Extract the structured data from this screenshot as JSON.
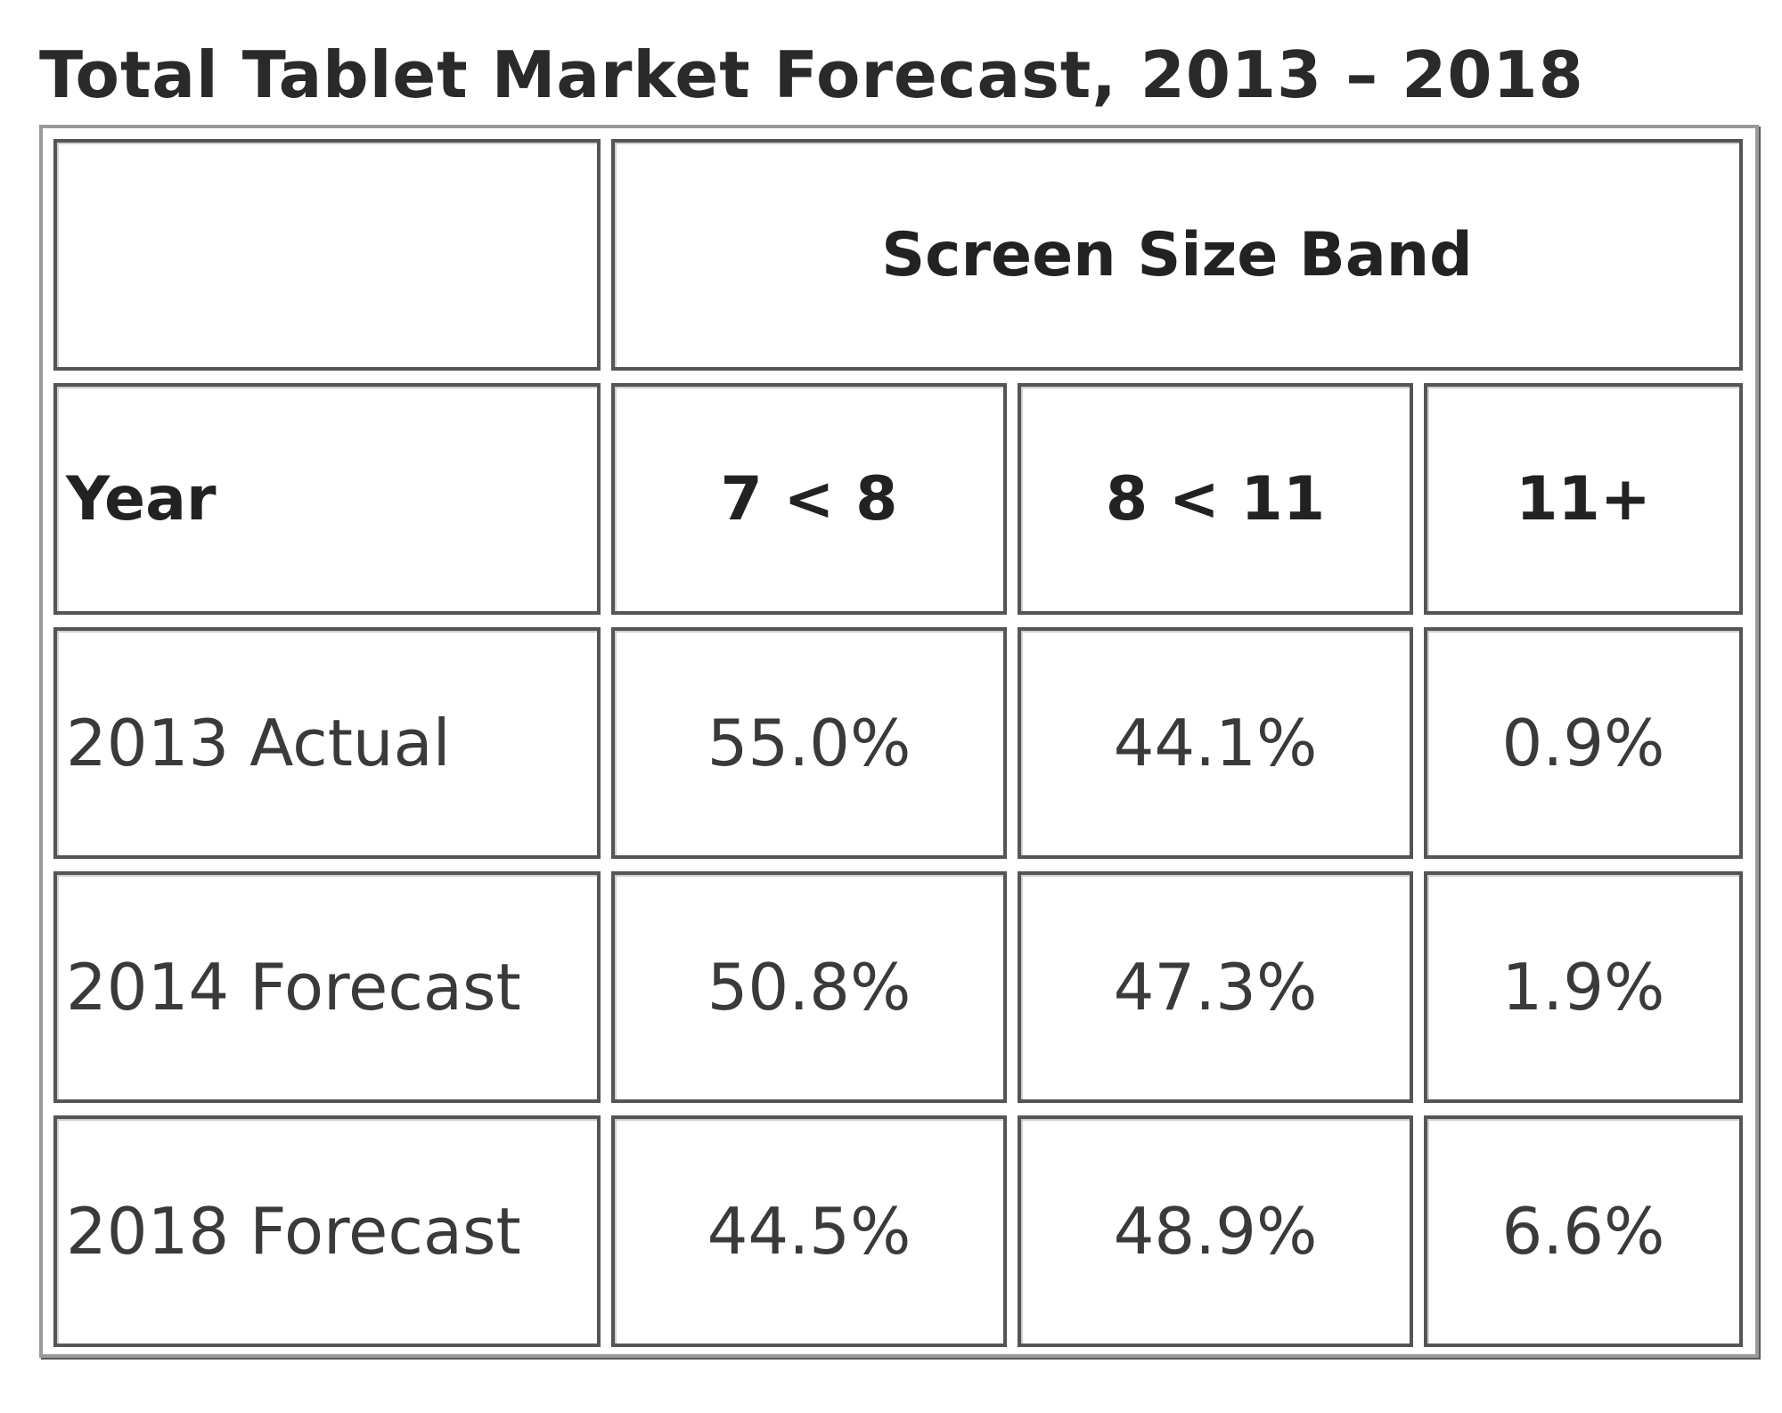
{
  "title": "Total Tablet Market Forecast, 2013 – 2018",
  "table": {
    "group_header": "Screen Size Band",
    "year_header": "Year",
    "columns": [
      "7 < 8",
      "8 < 11",
      "11+"
    ],
    "rows": [
      {
        "label": "2013 Actual",
        "values": [
          "55.0%",
          "44.1%",
          "0.9%"
        ]
      },
      {
        "label": "2014 Forecast",
        "values": [
          "50.8%",
          "47.3%",
          "1.9%"
        ]
      },
      {
        "label": "2018 Forecast",
        "values": [
          "44.5%",
          "48.9%",
          "6.6%"
        ]
      }
    ]
  }
}
